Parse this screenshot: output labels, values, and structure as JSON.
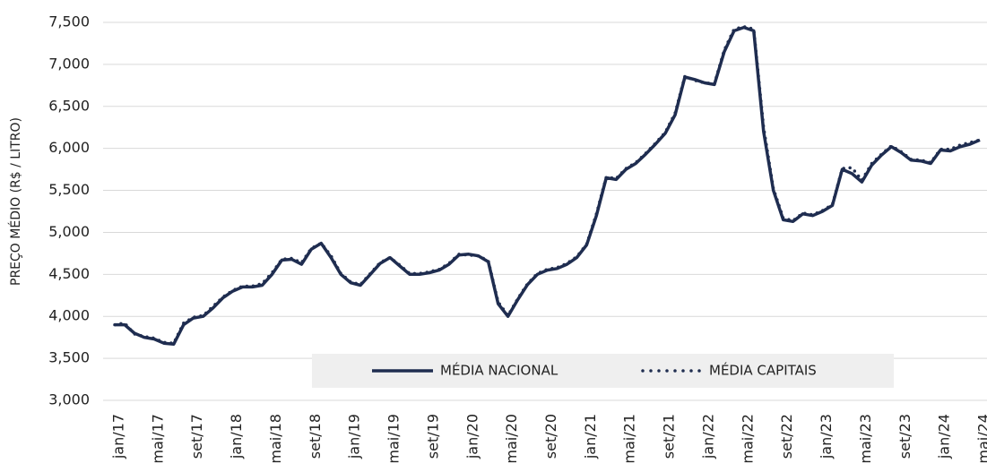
{
  "chart_data": {
    "type": "line",
    "ylabel": "PREÇO MÉDIO (R$ / LITRO)",
    "categories": [
      "jan/17",
      null,
      null,
      null,
      "mai/17",
      null,
      null,
      null,
      "set/17",
      null,
      null,
      null,
      "jan/18",
      null,
      null,
      null,
      "mai/18",
      null,
      null,
      null,
      "set/18",
      null,
      null,
      null,
      "jan/19",
      null,
      null,
      null,
      "mai/19",
      null,
      null,
      null,
      "set/19",
      null,
      null,
      null,
      "jan/20",
      null,
      null,
      null,
      "mai/20",
      null,
      null,
      null,
      "set/20",
      null,
      null,
      null,
      "jan/21",
      null,
      null,
      null,
      "mai/21",
      null,
      null,
      null,
      "set/21",
      null,
      null,
      null,
      "jan/22",
      null,
      null,
      null,
      "mai/22",
      null,
      null,
      null,
      "set/22",
      null,
      null,
      null,
      "jan/23",
      null,
      null,
      null,
      "mai/23",
      null,
      null,
      null,
      "set/23",
      null,
      null,
      null,
      "jan/24",
      null,
      null,
      null,
      "mai/24"
    ],
    "series": [
      {
        "name": "MÉDIA NACIONAL",
        "color": "#1f2d50",
        "style": "solid",
        "values": [
          3900,
          3900,
          3800,
          3750,
          3730,
          3680,
          3670,
          3900,
          3980,
          4000,
          4100,
          4220,
          4300,
          4350,
          4350,
          4370,
          4500,
          4670,
          4680,
          4620,
          4800,
          4870,
          4700,
          4500,
          4400,
          4370,
          4500,
          4630,
          4700,
          4600,
          4500,
          4500,
          4520,
          4550,
          4620,
          4730,
          4740,
          4720,
          4650,
          4150,
          4000,
          4200,
          4380,
          4500,
          4550,
          4570,
          4620,
          4700,
          4850,
          5200,
          5650,
          5630,
          5750,
          5820,
          5930,
          6050,
          6180,
          6400,
          6850,
          6820,
          6780,
          6760,
          7150,
          7400,
          7440,
          7400,
          6200,
          5500,
          5150,
          5130,
          5220,
          5200,
          5250,
          5320,
          5750,
          5700,
          5600,
          5800,
          5920,
          6020,
          5950,
          5860,
          5850,
          5820,
          5980,
          5970,
          6020,
          6050,
          6100
        ]
      },
      {
        "name": "MÉDIA CAPITAIS",
        "color": "#1f2d50",
        "style": "dotted",
        "values": [
          3900,
          3920,
          3790,
          3760,
          3740,
          3690,
          3680,
          3920,
          3990,
          4010,
          4120,
          4230,
          4310,
          4360,
          4360,
          4390,
          4520,
          4680,
          4690,
          4640,
          4810,
          4870,
          4720,
          4510,
          4410,
          4380,
          4510,
          4640,
          4700,
          4610,
          4510,
          4510,
          4530,
          4560,
          4630,
          4740,
          4730,
          4720,
          4660,
          4170,
          4010,
          4210,
          4390,
          4510,
          4560,
          4580,
          4630,
          4710,
          4860,
          5220,
          5660,
          5640,
          5760,
          5830,
          5940,
          6060,
          6190,
          6420,
          6860,
          6810,
          6780,
          6770,
          7170,
          7420,
          7450,
          7420,
          6250,
          5520,
          5170,
          5140,
          5230,
          5210,
          5260,
          5330,
          5760,
          5770,
          5620,
          5820,
          5930,
          6030,
          5960,
          5870,
          5860,
          5830,
          5990,
          5990,
          6040,
          6070,
          6100
        ]
      }
    ],
    "ylim": [
      3000,
      7500
    ],
    "yticks": [
      {
        "value": 3000,
        "label": "3,000"
      },
      {
        "value": 3500,
        "label": "3,500"
      },
      {
        "value": 4000,
        "label": "4,000"
      },
      {
        "value": 4500,
        "label": "4,500"
      },
      {
        "value": 5000,
        "label": "5,000"
      },
      {
        "value": 5500,
        "label": "5,500"
      },
      {
        "value": 6000,
        "label": "6,000"
      },
      {
        "value": 6500,
        "label": "6,500"
      },
      {
        "value": 7000,
        "label": "7,000"
      },
      {
        "value": 7500,
        "label": "7,500"
      }
    ],
    "grid": true,
    "legend": "bottom"
  }
}
